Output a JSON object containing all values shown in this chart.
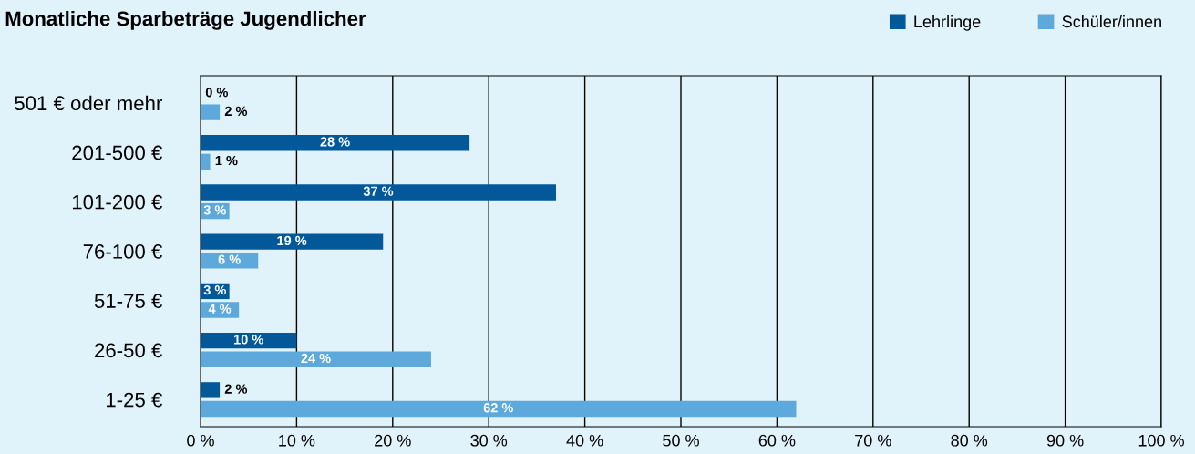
{
  "chart_data": {
    "type": "bar",
    "orientation": "horizontal",
    "title": "Monatliche Sparbeträge Jugendlicher",
    "categories": [
      "501 € oder mehr",
      "201-500 €",
      "101-200 €",
      "76-100 €",
      "51-75 €",
      "26-50 €",
      "1-25 €"
    ],
    "series": [
      {
        "name": "Lehrlinge",
        "color": "#03589a",
        "values": [
          0,
          28,
          37,
          19,
          3,
          10,
          2
        ],
        "value_labels": [
          "0 %",
          "28 %",
          "37 %",
          "19 %",
          "3 %",
          "10 %",
          "2 %"
        ]
      },
      {
        "name": "Schüler/innen",
        "color": "#5ea9dc",
        "values": [
          2,
          1,
          3,
          6,
          4,
          24,
          62
        ],
        "value_labels": [
          "2 %",
          "1 %",
          "3 %",
          "6 %",
          "4 %",
          "24 %",
          "62 %"
        ]
      }
    ],
    "xlim": [
      0,
      100
    ],
    "xticks": [
      {
        "value": 0,
        "label": "0 %"
      },
      {
        "value": 10,
        "label": "10 %"
      },
      {
        "value": 20,
        "label": "20 %"
      },
      {
        "value": 30,
        "label": "30 %"
      },
      {
        "value": 40,
        "label": "40 %"
      },
      {
        "value": 50,
        "label": "50 %"
      },
      {
        "value": 60,
        "label": "60 %"
      },
      {
        "value": 70,
        "label": "70 %"
      },
      {
        "value": 80,
        "label": "80 %"
      },
      {
        "value": 90,
        "label": "90 %"
      },
      {
        "value": 100,
        "label": "100 %"
      }
    ],
    "grid": "x",
    "legend": "top right"
  }
}
